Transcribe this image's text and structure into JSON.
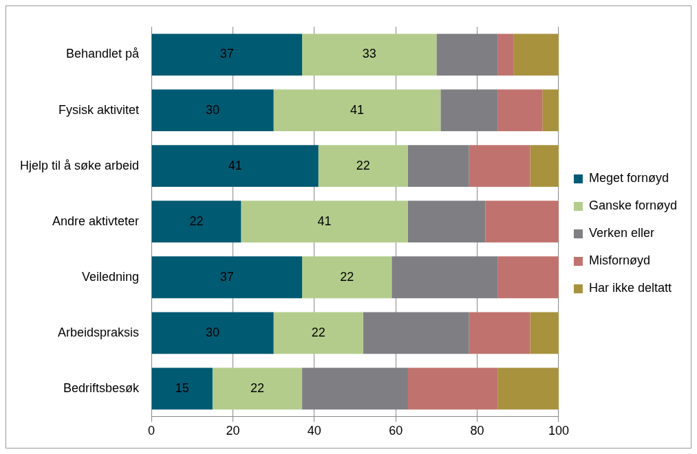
{
  "chart_data": {
    "type": "bar",
    "orientation": "horizontal",
    "stacked": true,
    "categories": [
      "Behandlet på",
      "Fysisk aktivitet",
      "Hjelp til å søke arbeid",
      "Andre aktivteter",
      "Veiledning",
      "Arbeidspraksis",
      "Bedriftsbesøk"
    ],
    "series": [
      {
        "name": "Meget fornøyd",
        "color": "#005a72",
        "values": [
          37,
          30,
          41,
          22,
          37,
          30,
          15
        ],
        "value_labels": [
          "37",
          "30",
          "41",
          "22",
          "37",
          "30",
          "15"
        ]
      },
      {
        "name": "Ganske fornøyd",
        "color": "#b3cc8c",
        "values": [
          33,
          41,
          22,
          41,
          22,
          22,
          22
        ],
        "value_labels": [
          "33",
          "41",
          "22",
          "41",
          "22",
          "22",
          "22"
        ]
      },
      {
        "name": "Verken eller",
        "color": "#7f7f83",
        "values": [
          15,
          14,
          15,
          19,
          26,
          26,
          26
        ]
      },
      {
        "name": "Misfornøyd",
        "color": "#c0736e",
        "values": [
          4,
          11,
          15,
          18,
          15,
          15,
          22
        ]
      },
      {
        "name": "Har ikke deltatt",
        "color": "#a8923e",
        "values": [
          11,
          4,
          7,
          0,
          0,
          7,
          15
        ]
      }
    ],
    "xlim": [
      0,
      100
    ],
    "xticks": [
      0,
      20,
      40,
      60,
      80,
      100
    ],
    "grid": "x",
    "legend": "right"
  }
}
